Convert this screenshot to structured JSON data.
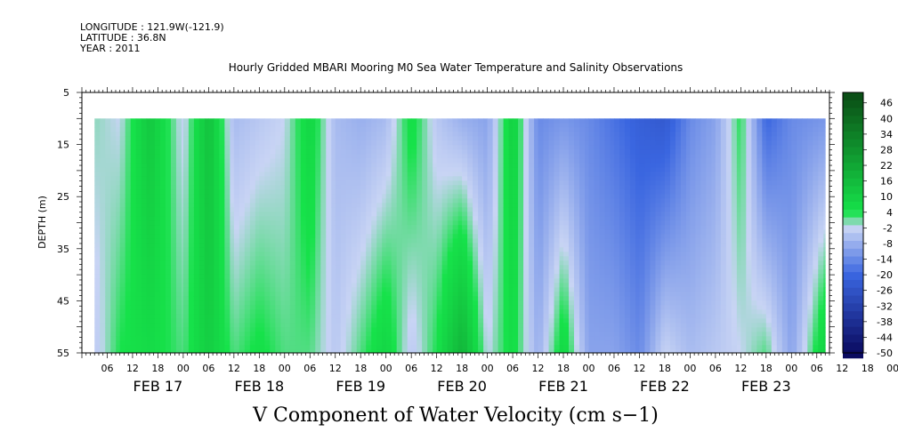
{
  "header": {
    "longitude": "LONGITUDE : 121.9W(-121.9)",
    "latitude": "LATITUDE : 36.8N",
    "year": "YEAR : 2011"
  },
  "chart_data": {
    "type": "heatmap",
    "title": "Hourly Gridded MBARI Mooring M0 Sea Water Temperature and Salinity Observations",
    "variable_title": "V Component of Water Velocity (cm s−1)",
    "ylabel": "DEPTH (m)",
    "ylim": [
      5,
      55
    ],
    "y_ticks": [
      "5",
      "15",
      "25",
      "35",
      "45",
      "55"
    ],
    "data_depth_range": [
      10,
      55
    ],
    "x_hour_ticks": [
      "06",
      "12",
      "18",
      "00",
      "06",
      "12",
      "18",
      "00",
      "06",
      "12",
      "18",
      "00",
      "06",
      "12",
      "18",
      "00",
      "06",
      "12",
      "18",
      "00",
      "06",
      "12",
      "18",
      "00",
      "06",
      "12",
      "18",
      "00",
      "06",
      "12",
      "18",
      "00"
    ],
    "date_labels": [
      "FEB 17",
      "FEB 18",
      "FEB 19",
      "FEB 20",
      "FEB 21",
      "FEB 22",
      "FEB 23"
    ],
    "colorbar_labels": [
      "46",
      "40",
      "34",
      "28",
      "22",
      "16",
      "10",
      "4",
      "-2",
      "-8",
      "-14",
      "-20",
      "-26",
      "-32",
      "-38",
      "-44",
      "-50"
    ],
    "colorbar_range": [
      -50,
      50
    ],
    "colors": {
      "strong_positive": "#0a4a14",
      "positive": "#16e24a",
      "near_zero": "#c8d4f4",
      "negative": "#3a66e0",
      "strong_negative": "#0a0a60"
    },
    "column_profile_v": [
      {
        "time": "Feb 16 21:00",
        "surface": 0,
        "bottom": -4
      },
      {
        "time": "Feb 17 03:00",
        "surface": -2,
        "bottom": 4
      },
      {
        "time": "Feb 17 10:00",
        "surface": 12,
        "bottom": 6
      },
      {
        "time": "Feb 17 18:00",
        "surface": -3,
        "bottom": 2
      },
      {
        "time": "Feb 18 00:00",
        "surface": 14,
        "bottom": 10
      },
      {
        "time": "Feb 18 06:00",
        "surface": -6,
        "bottom": 2
      },
      {
        "time": "Feb 18 12:00",
        "surface": -4,
        "bottom": 5
      },
      {
        "time": "Feb 18 18:00",
        "surface": -2,
        "bottom": 2
      },
      {
        "time": "Feb 19 00:00",
        "surface": 8,
        "bottom": 2
      },
      {
        "time": "Feb 19 06:00",
        "surface": -6,
        "bottom": -4
      },
      {
        "time": "Feb 19 12:00",
        "surface": -8,
        "bottom": 2
      },
      {
        "time": "Feb 19 18:00",
        "surface": -6,
        "bottom": 8
      },
      {
        "time": "Feb 20 00:00",
        "surface": 6,
        "bottom": -4
      },
      {
        "time": "Feb 20 06:00",
        "surface": -4,
        "bottom": 4
      },
      {
        "time": "Feb 20 12:00",
        "surface": -8,
        "bottom": 18
      },
      {
        "time": "Feb 20 18:00",
        "surface": -10,
        "bottom": -2
      },
      {
        "time": "Feb 21 00:00",
        "surface": 10,
        "bottom": 6
      },
      {
        "time": "Feb 21 06:00",
        "surface": -14,
        "bottom": -8
      },
      {
        "time": "Feb 21 12:00",
        "surface": -12,
        "bottom": 8
      },
      {
        "time": "Feb 21 18:00",
        "surface": -14,
        "bottom": -10
      },
      {
        "time": "Feb 22 00:00",
        "surface": -18,
        "bottom": -10
      },
      {
        "time": "Feb 22 06:00",
        "surface": -22,
        "bottom": -14
      },
      {
        "time": "Feb 22 12:00",
        "surface": -24,
        "bottom": -2
      },
      {
        "time": "Feb 22 18:00",
        "surface": -14,
        "bottom": -6
      },
      {
        "time": "Feb 23 00:00",
        "surface": -10,
        "bottom": -4
      },
      {
        "time": "Feb 23 06:00",
        "surface": 4,
        "bottom": -2
      },
      {
        "time": "Feb 23 12:00",
        "surface": -20,
        "bottom": 2
      },
      {
        "time": "Feb 23 18:00",
        "surface": -14,
        "bottom": -10
      },
      {
        "time": "Feb 24 02:00",
        "surface": -12,
        "bottom": 10
      }
    ]
  }
}
